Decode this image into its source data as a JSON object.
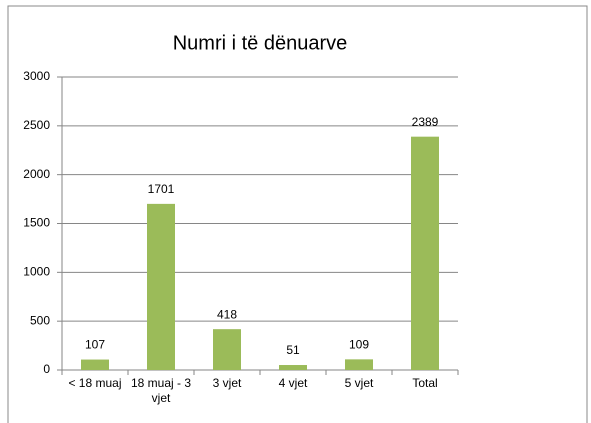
{
  "chart_data": {
    "type": "bar",
    "title": "Numri i të dënuarve",
    "categories": [
      "< 18 muaj",
      "18 muaj - 3 vjet",
      "3 vjet",
      "4 vjet",
      "5 vjet",
      "Total"
    ],
    "values": [
      107,
      1701,
      418,
      51,
      109,
      2389
    ],
    "color": "#9bbb59",
    "ylim": [
      0,
      3000
    ],
    "yticks": [
      0,
      500,
      1000,
      1500,
      2000,
      2500,
      3000
    ],
    "grid": true
  }
}
